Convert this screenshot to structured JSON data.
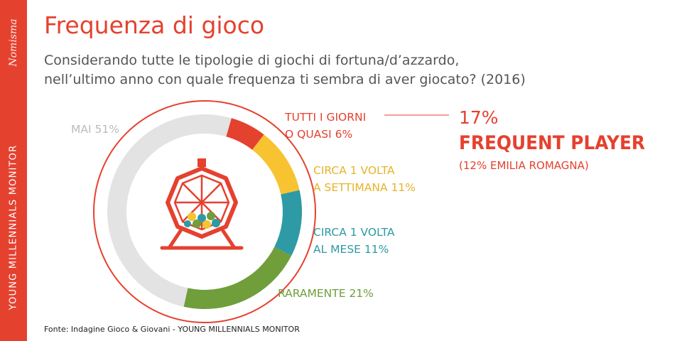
{
  "sidebar": {
    "brand": "Nomisma",
    "vertical_label": "YOUNG MILLENNIALS MONITOR"
  },
  "header": {
    "title": "Frequenza di gioco",
    "subtitle_lines": [
      "Considerando tutte le tipologie di giochi di fortuna/d’azzardo,",
      "nell’ultimo anno con quale frequenza ti sembra di aver giocato? (2016)"
    ]
  },
  "highlight": {
    "value": "17%",
    "label": "FREQUENT PLAYER",
    "note": "(12% EMILIA ROMAGNA)"
  },
  "source": "Fonte: Indagine Gioco & Giovani - YOUNG MILLENNIALS MONITOR",
  "colors": {
    "accent": "#e5412f",
    "weekly": "#f7c331",
    "monthly": "#2d9aa5",
    "rarely": "#6f9e3b",
    "never": "#e3e3e3"
  },
  "chart_data": {
    "type": "pie",
    "style": "donut",
    "categories": [
      "TUTTI I GIORNI O QUASI",
      "CIRCA 1 VOLTA A SETTIMANA",
      "CIRCA 1 VOLTA AL MESE",
      "RARAMENTE",
      "MAI"
    ],
    "values": [
      6,
      11,
      11,
      21,
      51
    ],
    "unit": "%",
    "labels": [
      [
        "TUTTI I GIORNI",
        "O QUASI 6%"
      ],
      [
        "CIRCA 1 VOLTA",
        "A SETTIMANA 11%"
      ],
      [
        "CIRCA 1 VOLTA",
        "AL MESE 11%"
      ],
      [
        "RARAMENTE 21%"
      ],
      [
        "MAI 51%"
      ]
    ],
    "colors": [
      "#e5412f",
      "#f7c331",
      "#2d9aa5",
      "#6f9e3b",
      "#e3e3e3"
    ],
    "label_colors": [
      "#e5412f",
      "#e6b32a",
      "#2d9aa5",
      "#6f9e3b",
      "#bbbbbb"
    ],
    "center_icon": "lottery-drum-icon"
  }
}
